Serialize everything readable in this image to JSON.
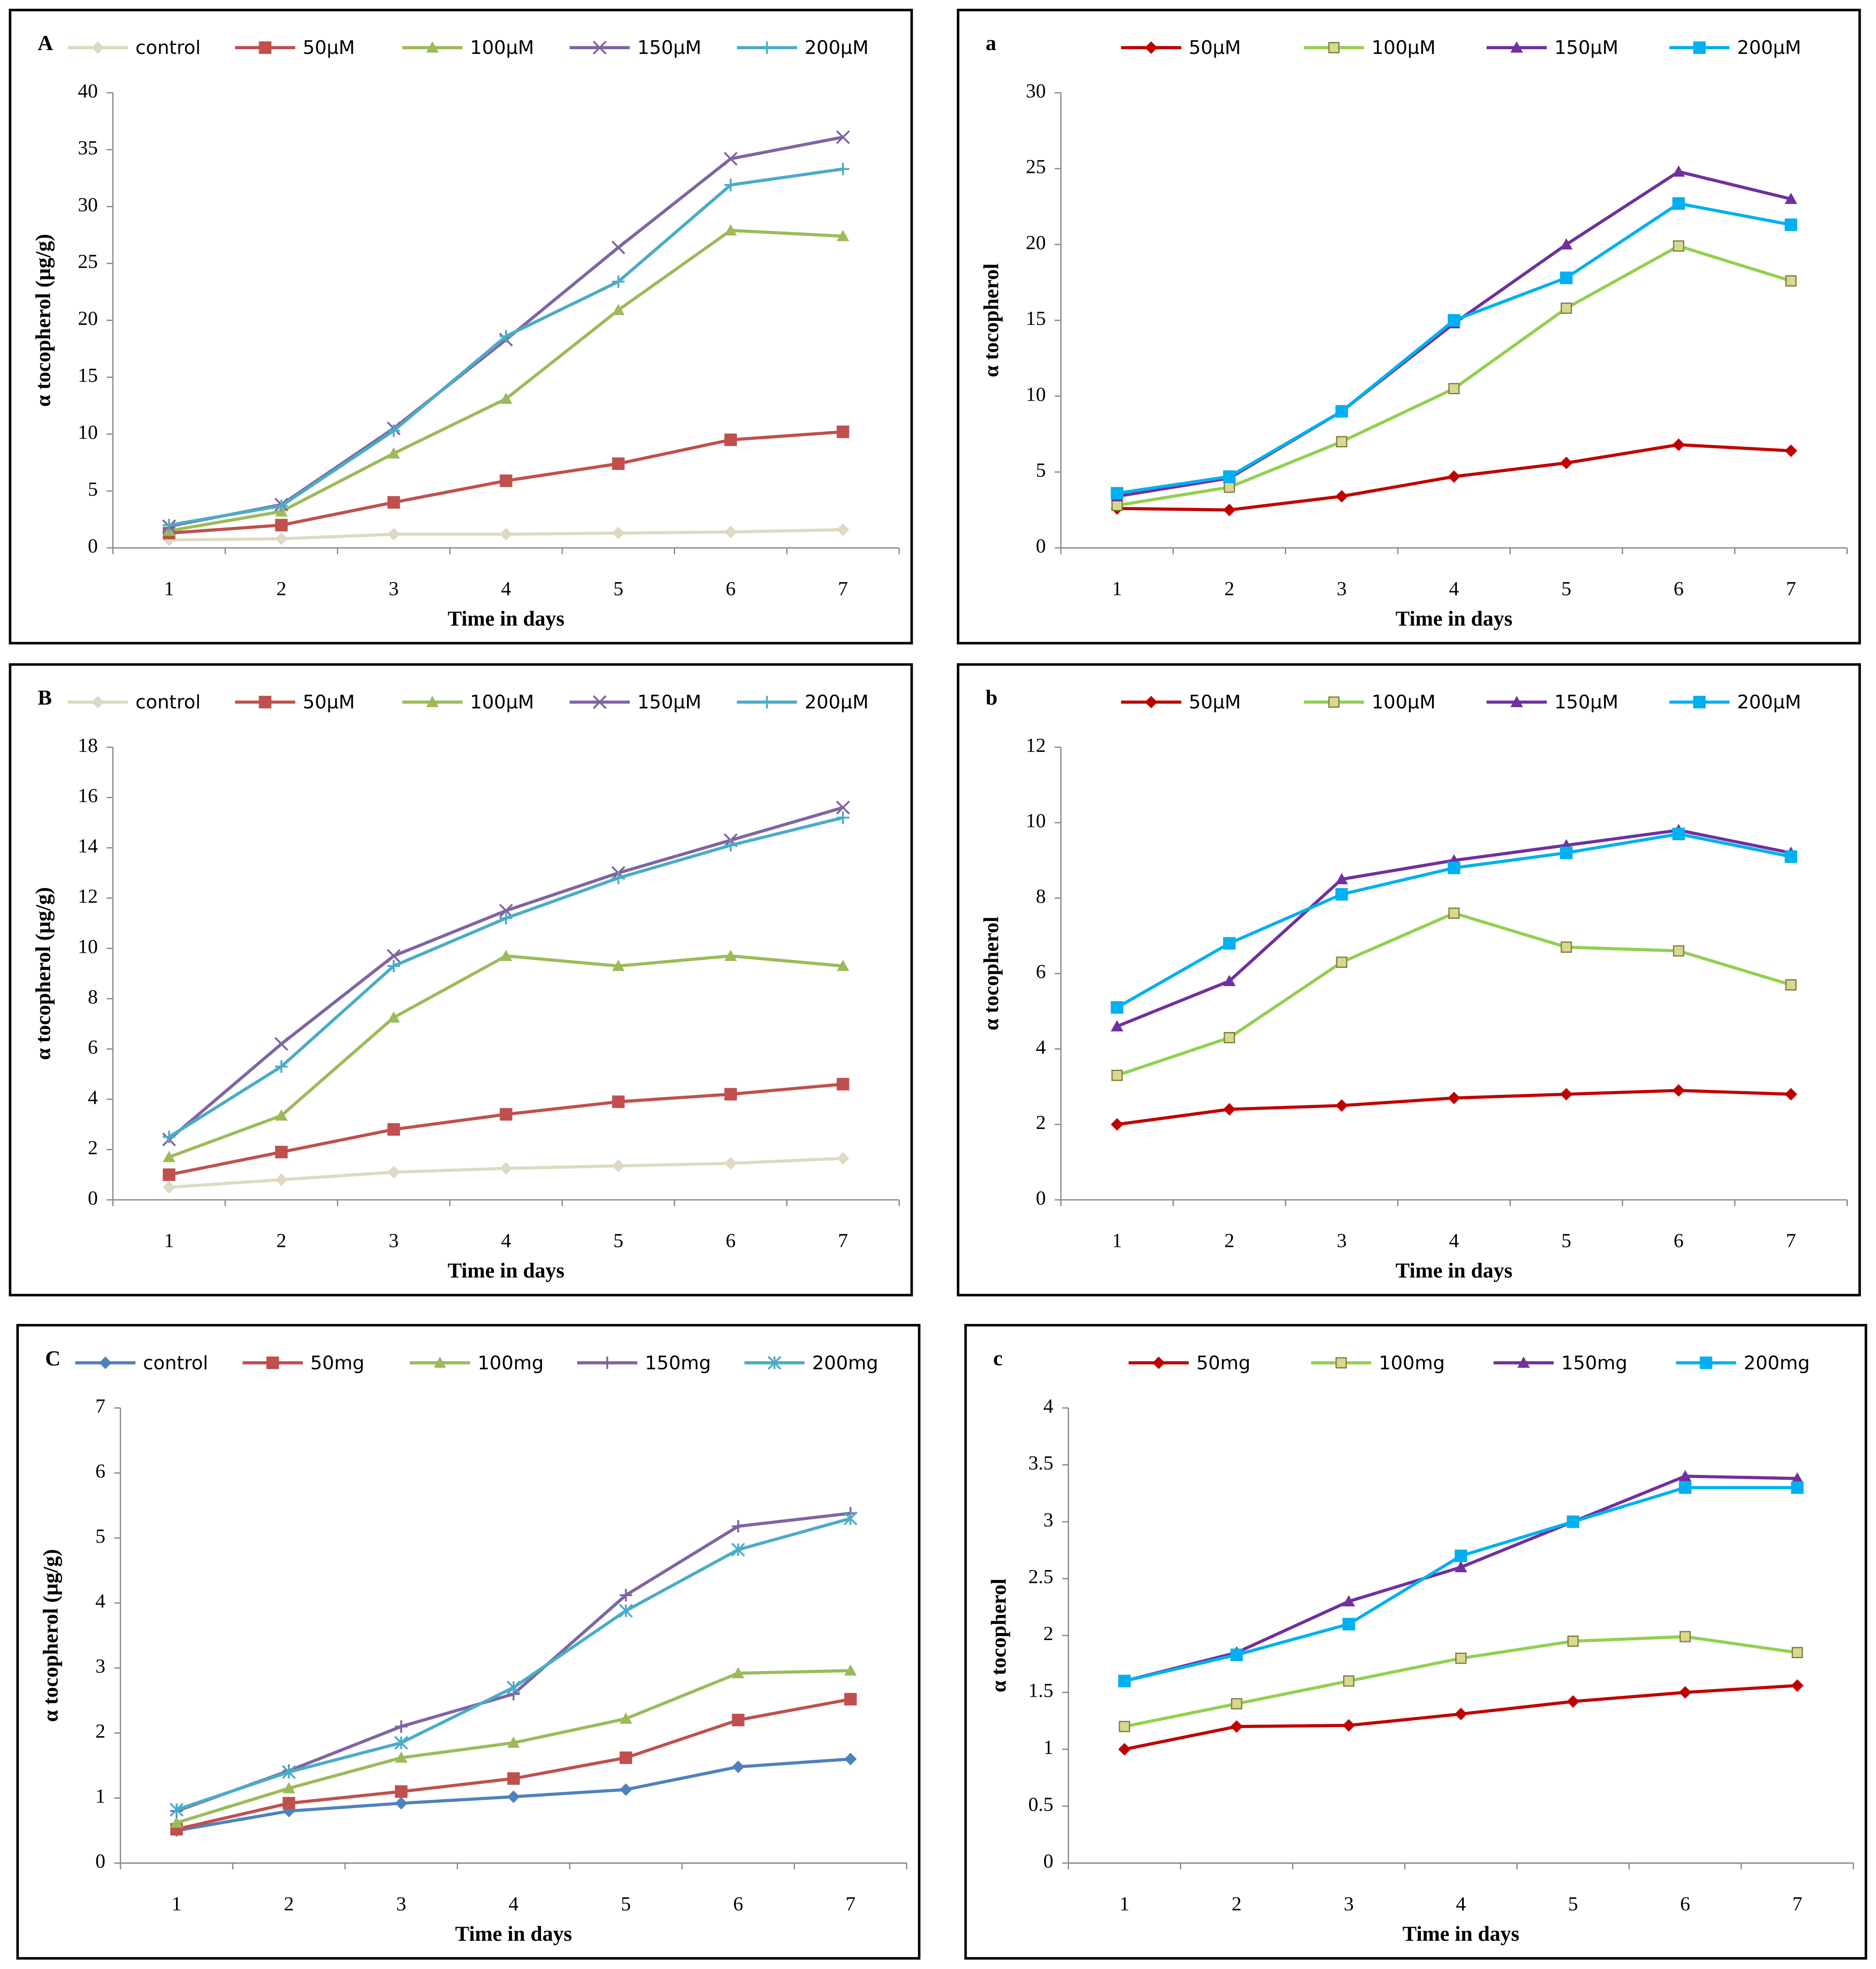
{
  "chart_data": [
    {
      "type": "line",
      "panel_label": "A",
      "y_label": "α tocopherol (µg/g)",
      "x_label": "Time in  days",
      "categories": [
        "1",
        "2",
        "3",
        "4",
        "5",
        "6",
        "7"
      ],
      "ylim": [
        0,
        40
      ],
      "yticks": [
        0,
        5,
        10,
        15,
        20,
        25,
        30,
        35,
        40
      ],
      "series": [
        {
          "name": "control",
          "color": "#ddd9c3",
          "marker": "diamond",
          "values": [
            0.7,
            0.8,
            1.2,
            1.2,
            1.3,
            1.4,
            1.6
          ]
        },
        {
          "name": "50µM",
          "color": "#c0504d",
          "marker": "square",
          "values": [
            1.3,
            2.0,
            4.0,
            5.9,
            7.4,
            9.5,
            10.2
          ]
        },
        {
          "name": "100µM",
          "color": "#9bbb59",
          "marker": "triangle",
          "values": [
            1.5,
            3.2,
            8.3,
            13.1,
            20.9,
            27.9,
            27.4
          ]
        },
        {
          "name": "150µM",
          "color": "#8064a2",
          "marker": "x",
          "values": [
            1.9,
            3.8,
            10.5,
            18.3,
            26.4,
            34.2,
            36.1
          ]
        },
        {
          "name": "200µM",
          "color": "#4bacc6",
          "marker": "plus",
          "values": [
            2.0,
            3.7,
            10.3,
            18.6,
            23.4,
            31.9,
            33.3
          ]
        }
      ]
    },
    {
      "type": "line",
      "panel_label": "a",
      "y_label": "α tocopherol",
      "x_label": "Time in  days",
      "categories": [
        "1",
        "2",
        "3",
        "4",
        "5",
        "6",
        "7"
      ],
      "ylim": [
        0,
        30
      ],
      "yticks": [
        0,
        5,
        10,
        15,
        20,
        25,
        30
      ],
      "series": [
        {
          "name": "50µM",
          "color": "#c00000",
          "marker": "diamond",
          "values": [
            2.6,
            2.5,
            3.4,
            4.7,
            5.6,
            6.8,
            6.4
          ]
        },
        {
          "name": "100µM",
          "color": "#92d050",
          "marker": "square-open",
          "values": [
            2.8,
            4.0,
            7.0,
            10.5,
            15.8,
            19.9,
            17.6
          ]
        },
        {
          "name": "150µM",
          "color": "#7030a0",
          "marker": "triangle",
          "values": [
            3.4,
            4.6,
            9.0,
            14.8,
            20.0,
            24.8,
            23.0
          ]
        },
        {
          "name": "200µM",
          "color": "#00b0f0",
          "marker": "square",
          "values": [
            3.6,
            4.7,
            9.0,
            15.0,
            17.8,
            22.7,
            21.3
          ]
        }
      ]
    },
    {
      "type": "line",
      "panel_label": "B",
      "y_label": "α tocopherol (µg/g)",
      "x_label": "Time in  days",
      "categories": [
        "1",
        "2",
        "3",
        "4",
        "5",
        "6",
        "7"
      ],
      "ylim": [
        0,
        18
      ],
      "yticks": [
        0,
        2,
        4,
        6,
        8,
        10,
        12,
        14,
        16,
        18
      ],
      "series": [
        {
          "name": "control",
          "color": "#ddd9c3",
          "marker": "diamond",
          "values": [
            0.5,
            0.8,
            1.1,
            1.25,
            1.35,
            1.45,
            1.65
          ]
        },
        {
          "name": "50µM",
          "color": "#c0504d",
          "marker": "square",
          "values": [
            1.0,
            1.9,
            2.8,
            3.4,
            3.9,
            4.2,
            4.6
          ]
        },
        {
          "name": "100µM",
          "color": "#9bbb59",
          "marker": "triangle",
          "values": [
            1.7,
            3.35,
            7.25,
            9.7,
            9.3,
            9.7,
            9.3
          ]
        },
        {
          "name": "150µM",
          "color": "#8064a2",
          "marker": "x",
          "values": [
            2.4,
            6.2,
            9.7,
            11.5,
            13.0,
            14.3,
            15.6
          ]
        },
        {
          "name": "200µM",
          "color": "#4bacc6",
          "marker": "plus",
          "values": [
            2.5,
            5.3,
            9.3,
            11.2,
            12.8,
            14.1,
            15.2
          ]
        }
      ]
    },
    {
      "type": "line",
      "panel_label": "b",
      "y_label": "α tocopherol",
      "x_label": "Time in  days",
      "categories": [
        "1",
        "2",
        "3",
        "4",
        "5",
        "6",
        "7"
      ],
      "ylim": [
        0,
        12
      ],
      "yticks": [
        0,
        2,
        4,
        6,
        8,
        10,
        12
      ],
      "series": [
        {
          "name": "50µM",
          "color": "#c00000",
          "marker": "diamond",
          "values": [
            2.0,
            2.4,
            2.5,
            2.7,
            2.8,
            2.9,
            2.8
          ]
        },
        {
          "name": "100µM",
          "color": "#92d050",
          "marker": "square-open",
          "values": [
            3.3,
            4.3,
            6.3,
            7.6,
            6.7,
            6.6,
            5.7
          ]
        },
        {
          "name": "150µM",
          "color": "#7030a0",
          "marker": "triangle",
          "values": [
            4.6,
            5.8,
            8.5,
            9.0,
            9.4,
            9.8,
            9.2
          ]
        },
        {
          "name": "200µM",
          "color": "#00b0f0",
          "marker": "square",
          "values": [
            5.1,
            6.8,
            8.1,
            8.8,
            9.2,
            9.7,
            9.1
          ]
        }
      ]
    },
    {
      "type": "line",
      "panel_label": "C",
      "y_label": "α tocopherol (µg/g)",
      "x_label": "Time in  days",
      "categories": [
        "1",
        "2",
        "3",
        "4",
        "5",
        "6",
        "7"
      ],
      "ylim": [
        0,
        7
      ],
      "yticks": [
        0,
        1,
        2,
        3,
        4,
        5,
        6,
        7
      ],
      "series": [
        {
          "name": "control",
          "color": "#4f81bd",
          "marker": "diamond",
          "values": [
            0.5,
            0.8,
            0.92,
            1.02,
            1.13,
            1.48,
            1.6
          ]
        },
        {
          "name": "50mg",
          "color": "#c0504d",
          "marker": "square",
          "values": [
            0.52,
            0.92,
            1.1,
            1.3,
            1.62,
            2.2,
            2.52
          ]
        },
        {
          "name": "100mg",
          "color": "#9bbb59",
          "marker": "triangle",
          "values": [
            0.62,
            1.15,
            1.62,
            1.85,
            2.22,
            2.92,
            2.96
          ]
        },
        {
          "name": "150mg",
          "color": "#8064a2",
          "marker": "plus",
          "values": [
            0.8,
            1.42,
            2.1,
            2.6,
            4.12,
            5.18,
            5.38
          ]
        },
        {
          "name": "200mg",
          "color": "#4bacc6",
          "marker": "star",
          "values": [
            0.82,
            1.4,
            1.85,
            2.7,
            3.88,
            4.82,
            5.3
          ]
        }
      ]
    },
    {
      "type": "line",
      "panel_label": "c",
      "y_label": "α tocopherol",
      "x_label": "Time in  days",
      "categories": [
        "1",
        "2",
        "3",
        "4",
        "5",
        "6",
        "7"
      ],
      "ylim": [
        0,
        4
      ],
      "yticks": [
        0,
        0.5,
        1,
        1.5,
        2,
        2.5,
        3,
        3.5,
        4
      ],
      "series": [
        {
          "name": "50mg",
          "color": "#c00000",
          "marker": "diamond",
          "values": [
            1.0,
            1.2,
            1.21,
            1.31,
            1.42,
            1.5,
            1.56
          ]
        },
        {
          "name": "100mg",
          "color": "#92d050",
          "marker": "square-open",
          "values": [
            1.2,
            1.4,
            1.6,
            1.8,
            1.95,
            1.99,
            1.85
          ]
        },
        {
          "name": "150mg",
          "color": "#7030a0",
          "marker": "triangle",
          "values": [
            1.6,
            1.85,
            2.3,
            2.6,
            3.0,
            3.4,
            3.38
          ]
        },
        {
          "name": "200mg",
          "color": "#00b0f0",
          "marker": "square",
          "values": [
            1.6,
            1.83,
            2.1,
            2.7,
            3.0,
            3.3,
            3.3
          ]
        }
      ]
    }
  ]
}
